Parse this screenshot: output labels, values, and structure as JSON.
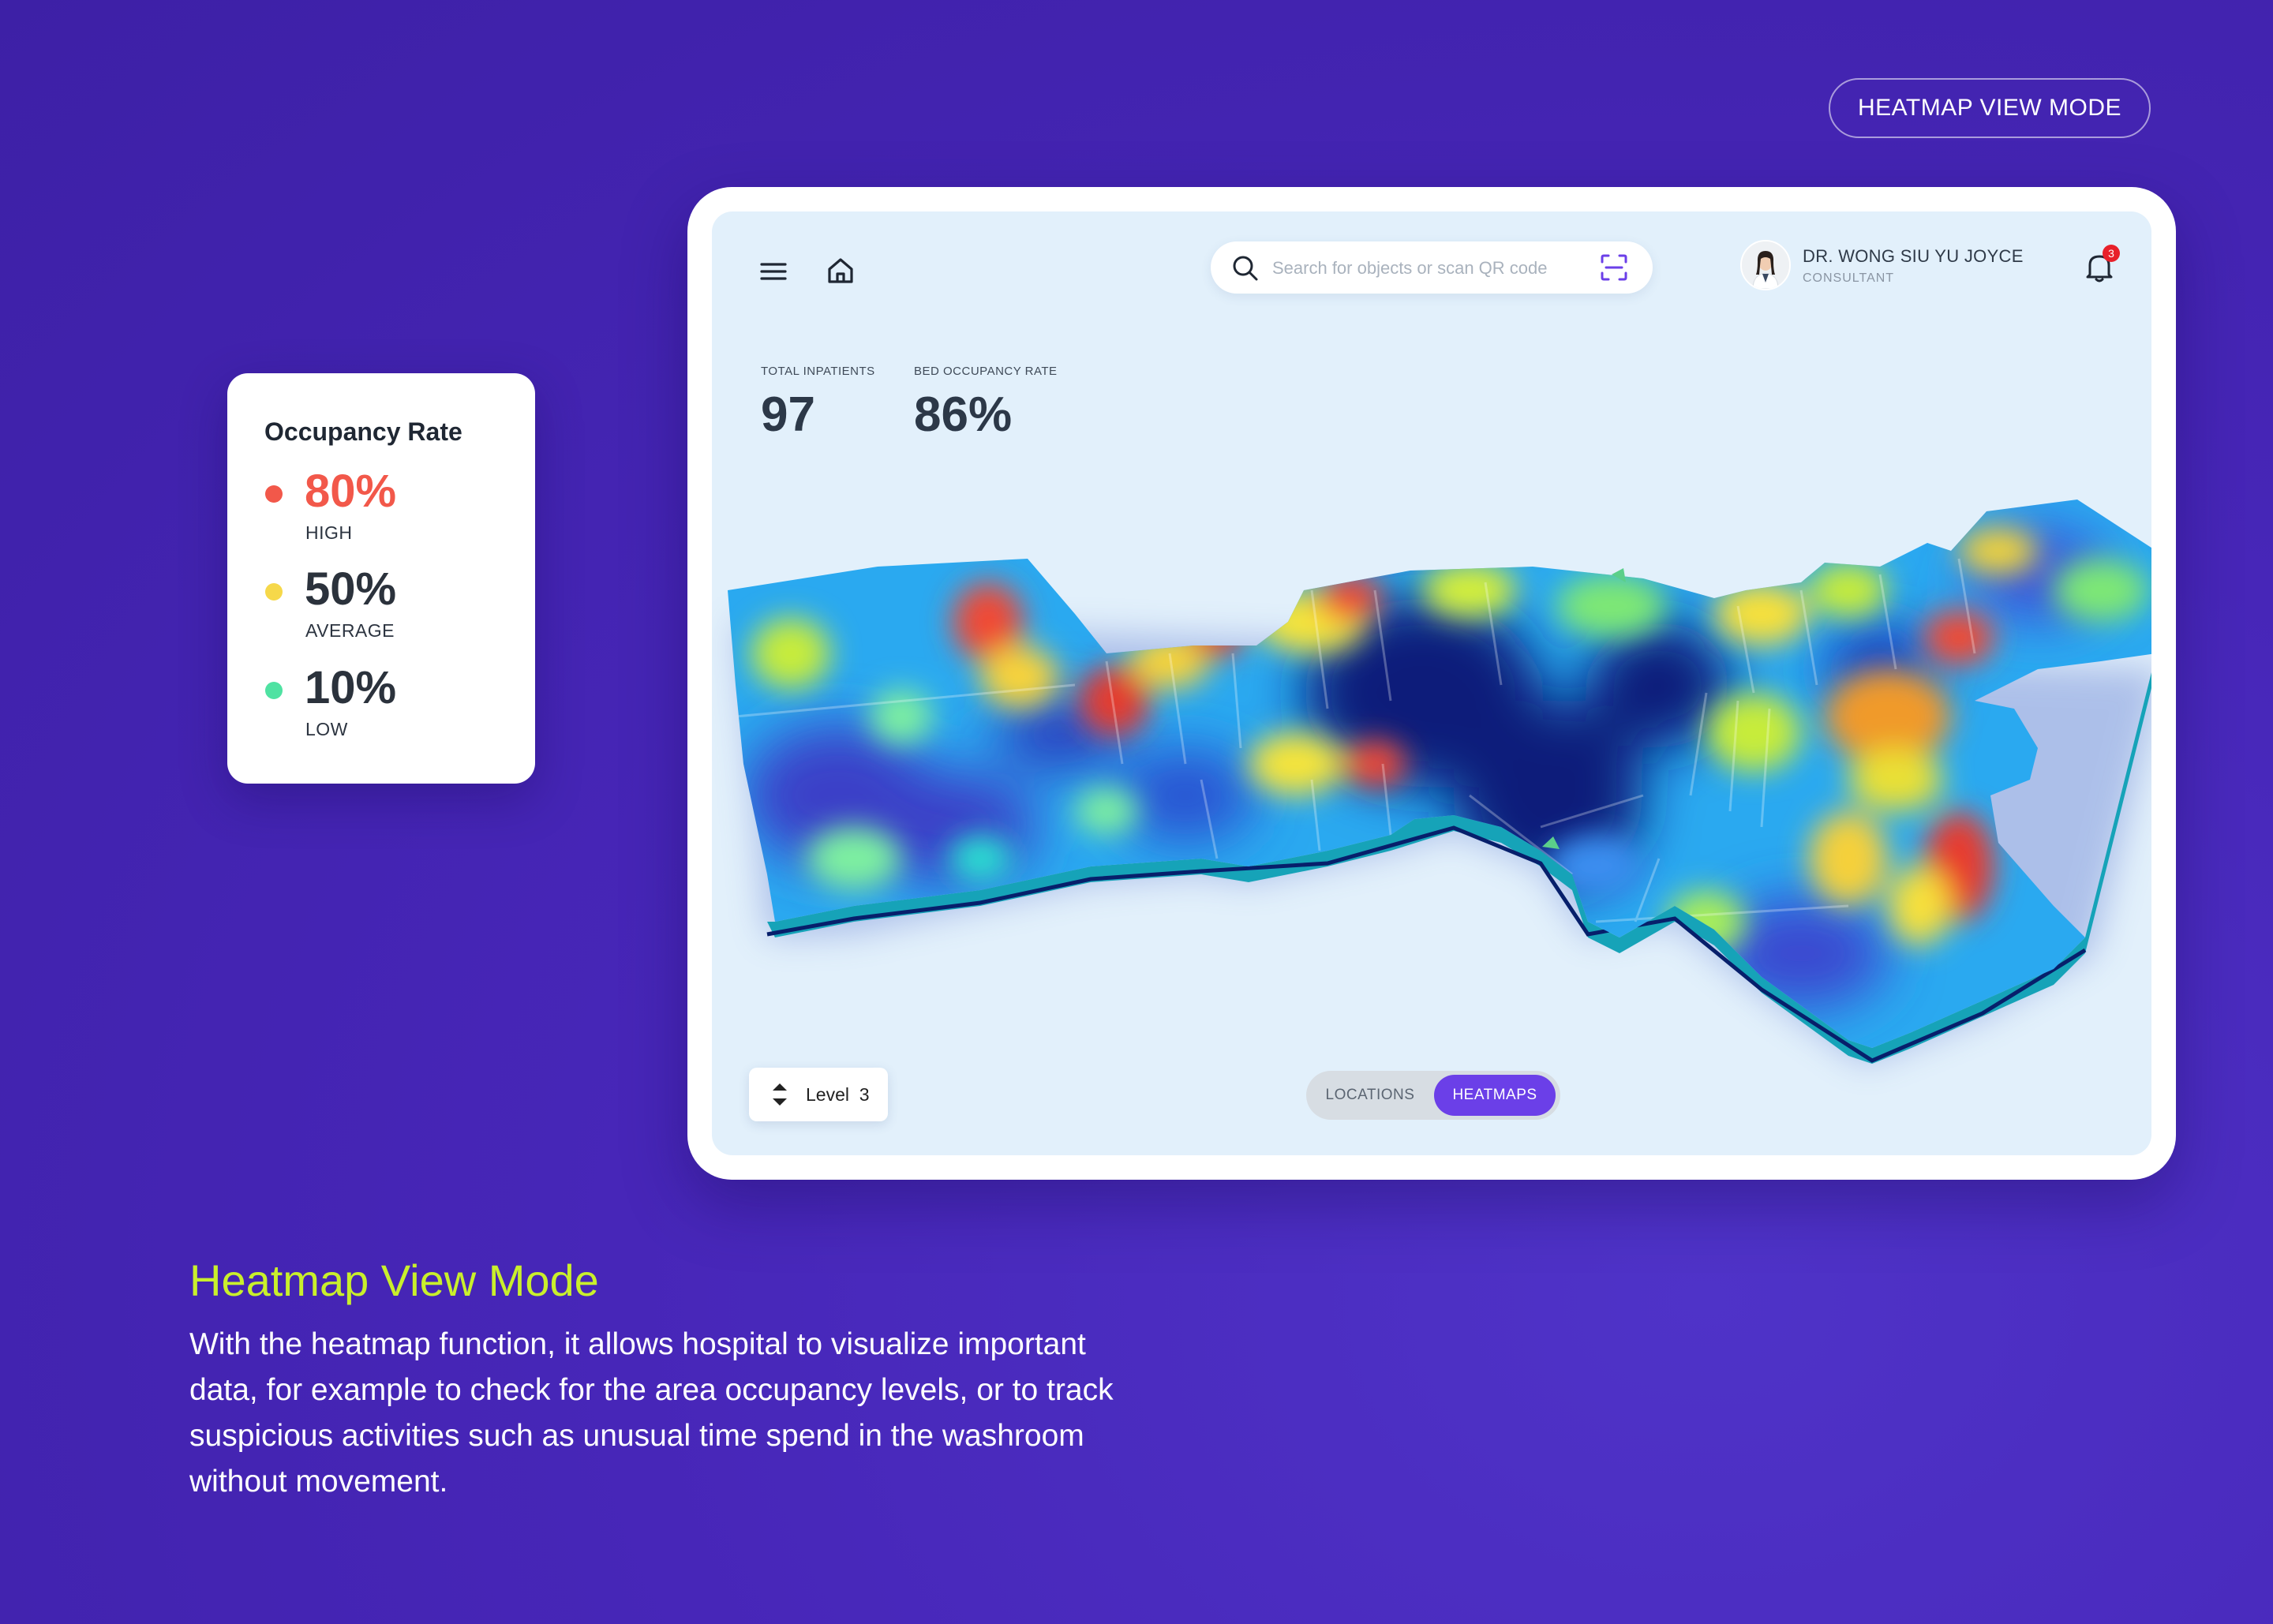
{
  "badge": {
    "label": "HEATMAP VIEW MODE"
  },
  "header": {
    "search_placeholder": "Search for objects or scan QR code",
    "user_name": "DR. WONG SIU YU JOYCE",
    "user_role": "CONSULTANT",
    "notification_count": "3"
  },
  "stats": [
    {
      "label": "TOTAL INPATIENTS",
      "value": "97"
    },
    {
      "label": "BED OCCUPANCY RATE",
      "value": "86%"
    }
  ],
  "legend": {
    "title": "Occupancy Rate",
    "items": [
      {
        "percent": "80%",
        "level": "HIGH",
        "color": "#f2584a"
      },
      {
        "percent": "50%",
        "level": "AVERAGE",
        "color": "#f6d84a"
      },
      {
        "percent": "10%",
        "level": "LOW",
        "color": "#4fe2a2"
      }
    ]
  },
  "level_selector": {
    "label": "Level  3"
  },
  "view_toggle": {
    "locations": "LOCATIONS",
    "heatmaps": "HEATMAPS",
    "active": "HEATMAPS",
    "accent": "#6b3fe8"
  },
  "feature": {
    "title": "Heatmap View Mode",
    "description": "With the heatmap function, it allows hospital to visualize important data, for example to check for the area occupancy levels, or to track suspicious activities such as unusual time spend in the washroom without movement."
  }
}
